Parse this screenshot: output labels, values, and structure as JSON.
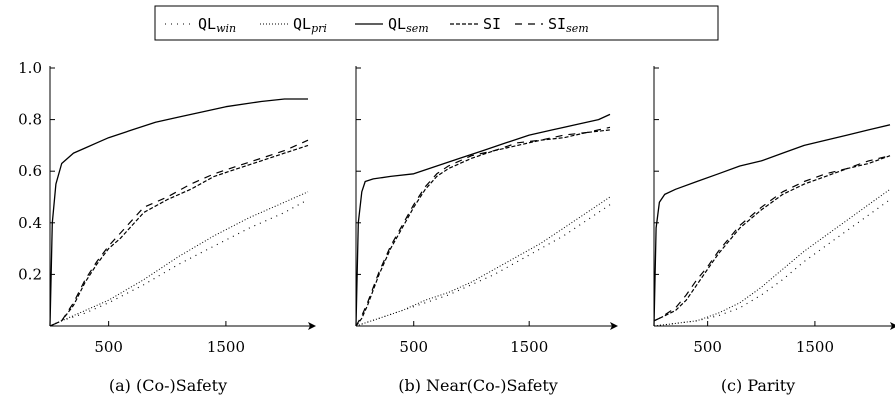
{
  "legend": [
    {
      "base": "QL",
      "sub": "win",
      "style": "dotted-sparse"
    },
    {
      "base": "QL",
      "sub": "pri",
      "style": "dotted-dense"
    },
    {
      "base": "QL",
      "sub": "sem",
      "style": "solid"
    },
    {
      "base": "SI",
      "sub": "",
      "style": "dashed"
    },
    {
      "base": "SI",
      "sub": "sem",
      "style": "dashed-loose"
    }
  ],
  "chart_data": [
    {
      "type": "line",
      "caption": "(a) (Co-)Safety",
      "xlim": [
        0,
        2200
      ],
      "ylim": [
        0,
        1.0
      ],
      "xticks": [
        500,
        1500
      ],
      "yticks": [
        0.2,
        0.4,
        0.6,
        0.8,
        1.0
      ],
      "show_y_labels": true,
      "series": [
        {
          "name": "QLwin",
          "x": [
            0,
            100,
            300,
            500,
            800,
            1100,
            1400,
            1700,
            2000,
            2200
          ],
          "y": [
            0,
            0.02,
            0.05,
            0.09,
            0.16,
            0.24,
            0.31,
            0.38,
            0.44,
            0.49
          ]
        },
        {
          "name": "QLpri",
          "x": [
            0,
            100,
            300,
            500,
            800,
            1100,
            1400,
            1700,
            2000,
            2200
          ],
          "y": [
            0,
            0.02,
            0.06,
            0.1,
            0.18,
            0.27,
            0.35,
            0.42,
            0.48,
            0.52
          ]
        },
        {
          "name": "QLsem",
          "x": [
            0,
            20,
            50,
            100,
            200,
            300,
            400,
            500,
            700,
            900,
            1100,
            1300,
            1500,
            1800,
            2000,
            2200
          ],
          "y": [
            0,
            0.4,
            0.55,
            0.63,
            0.67,
            0.69,
            0.71,
            0.73,
            0.76,
            0.79,
            0.81,
            0.83,
            0.85,
            0.87,
            0.88,
            0.88
          ]
        },
        {
          "name": "SI",
          "x": [
            0,
            100,
            200,
            300,
            400,
            500,
            600,
            700,
            800,
            1000,
            1200,
            1400,
            1600,
            1800,
            2000,
            2200
          ],
          "y": [
            0,
            0.02,
            0.08,
            0.17,
            0.24,
            0.3,
            0.34,
            0.39,
            0.44,
            0.49,
            0.53,
            0.58,
            0.61,
            0.64,
            0.67,
            0.7
          ]
        },
        {
          "name": "SIsem",
          "x": [
            0,
            100,
            200,
            300,
            400,
            500,
            600,
            700,
            800,
            1000,
            1200,
            1400,
            1600,
            1800,
            2000,
            2200
          ],
          "y": [
            0,
            0.02,
            0.09,
            0.18,
            0.25,
            0.31,
            0.36,
            0.41,
            0.46,
            0.5,
            0.55,
            0.59,
            0.62,
            0.65,
            0.68,
            0.72
          ]
        }
      ]
    },
    {
      "type": "line",
      "caption": "(b) Near(Co-)Safety",
      "xlim": [
        0,
        2200
      ],
      "ylim": [
        0,
        1.0
      ],
      "xticks": [
        500,
        1500
      ],
      "yticks": [
        0.2,
        0.4,
        0.6,
        0.8,
        1.0
      ],
      "show_y_labels": false,
      "series": [
        {
          "name": "QLwin",
          "x": [
            0,
            200,
            400,
            600,
            800,
            1000,
            1200,
            1400,
            1600,
            1800,
            2000,
            2200
          ],
          "y": [
            0,
            0.03,
            0.06,
            0.09,
            0.12,
            0.16,
            0.2,
            0.25,
            0.3,
            0.35,
            0.41,
            0.47
          ]
        },
        {
          "name": "QLpri",
          "x": [
            0,
            200,
            400,
            600,
            800,
            1000,
            1200,
            1400,
            1600,
            1800,
            2000,
            2200
          ],
          "y": [
            0,
            0.03,
            0.06,
            0.1,
            0.13,
            0.17,
            0.22,
            0.27,
            0.32,
            0.38,
            0.44,
            0.5
          ]
        },
        {
          "name": "QLsem",
          "x": [
            0,
            20,
            50,
            80,
            150,
            300,
            500,
            700,
            900,
            1100,
            1300,
            1500,
            1700,
            1900,
            2100,
            2200
          ],
          "y": [
            0,
            0.4,
            0.52,
            0.56,
            0.57,
            0.58,
            0.59,
            0.62,
            0.65,
            0.68,
            0.71,
            0.74,
            0.76,
            0.78,
            0.8,
            0.82
          ]
        },
        {
          "name": "SI",
          "x": [
            0,
            50,
            100,
            200,
            300,
            400,
            500,
            600,
            700,
            800,
            1000,
            1200,
            1400,
            1600,
            1800,
            2000,
            2200
          ],
          "y": [
            0,
            0.03,
            0.08,
            0.2,
            0.3,
            0.38,
            0.46,
            0.53,
            0.58,
            0.61,
            0.65,
            0.68,
            0.7,
            0.72,
            0.73,
            0.75,
            0.76
          ]
        },
        {
          "name": "SIsem",
          "x": [
            0,
            50,
            100,
            200,
            300,
            400,
            500,
            600,
            700,
            800,
            1000,
            1200,
            1400,
            1600,
            1800,
            2000,
            2200
          ],
          "y": [
            0,
            0.04,
            0.09,
            0.21,
            0.31,
            0.39,
            0.47,
            0.54,
            0.59,
            0.62,
            0.66,
            0.68,
            0.71,
            0.72,
            0.74,
            0.75,
            0.77
          ]
        }
      ]
    },
    {
      "type": "line",
      "caption": "(c) Parity",
      "xlim": [
        0,
        2200
      ],
      "ylim": [
        0,
        1.0
      ],
      "xticks": [
        500,
        1500
      ],
      "yticks": [
        0.2,
        0.4,
        0.6,
        0.8,
        1.0
      ],
      "show_y_labels": false,
      "series": [
        {
          "name": "QLwin",
          "x": [
            0,
            200,
            400,
            600,
            800,
            1000,
            1200,
            1400,
            1600,
            1800,
            2000,
            2200
          ],
          "y": [
            0,
            0.01,
            0.02,
            0.04,
            0.07,
            0.12,
            0.18,
            0.25,
            0.31,
            0.37,
            0.43,
            0.49
          ]
        },
        {
          "name": "QLpri",
          "x": [
            0,
            200,
            400,
            600,
            800,
            1000,
            1200,
            1400,
            1600,
            1800,
            2000,
            2200
          ],
          "y": [
            0,
            0.01,
            0.02,
            0.05,
            0.09,
            0.15,
            0.22,
            0.29,
            0.35,
            0.41,
            0.47,
            0.53
          ]
        },
        {
          "name": "QLsem",
          "x": [
            0,
            20,
            50,
            100,
            200,
            400,
            600,
            800,
            1000,
            1200,
            1400,
            1600,
            1800,
            2000,
            2200
          ],
          "y": [
            0,
            0.38,
            0.48,
            0.51,
            0.53,
            0.56,
            0.59,
            0.62,
            0.64,
            0.67,
            0.7,
            0.72,
            0.74,
            0.76,
            0.78
          ]
        },
        {
          "name": "SI",
          "x": [
            0,
            50,
            200,
            300,
            400,
            500,
            600,
            700,
            800,
            1000,
            1200,
            1400,
            1600,
            1800,
            2000,
            2200
          ],
          "y": [
            0.02,
            0.03,
            0.06,
            0.1,
            0.16,
            0.22,
            0.28,
            0.33,
            0.38,
            0.45,
            0.51,
            0.55,
            0.58,
            0.61,
            0.63,
            0.66
          ]
        },
        {
          "name": "SIsem",
          "x": [
            0,
            50,
            200,
            300,
            400,
            500,
            600,
            700,
            800,
            1000,
            1200,
            1400,
            1600,
            1800,
            2000,
            2200
          ],
          "y": [
            0.02,
            0.03,
            0.07,
            0.12,
            0.18,
            0.23,
            0.29,
            0.34,
            0.39,
            0.46,
            0.52,
            0.56,
            0.59,
            0.61,
            0.64,
            0.66
          ]
        }
      ]
    }
  ]
}
